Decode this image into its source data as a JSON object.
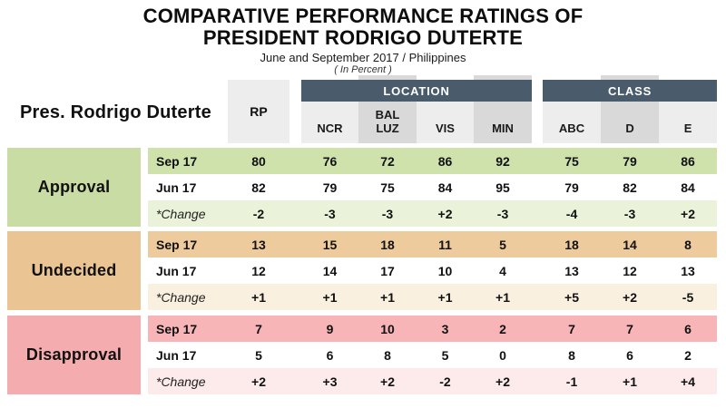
{
  "title": {
    "line1": "COMPARATIVE PERFORMANCE RATINGS OF",
    "line2": "PRESIDENT RODRIGO DUTERTE",
    "subtitle": "June and September 2017 / Philippines",
    "note": "( In Percent )"
  },
  "subject_label": "Pres. Rodrigo Duterte",
  "columns": {
    "rp": "RP",
    "location_group": "LOCATION",
    "location": [
      "NCR",
      "BAL\nLUZ",
      "VIS",
      "MIN"
    ],
    "class_group": "CLASS",
    "class": [
      "ABC",
      "D",
      "E"
    ]
  },
  "sections": [
    {
      "label": "Approval",
      "colors": {
        "label_bg": "#c9dca3",
        "row_bg": "#cfe2ac",
        "change_bg": "#eaf2d9"
      },
      "rows": [
        {
          "label": "Sep 17",
          "values": [
            "80",
            "76",
            "72",
            "86",
            "92",
            "75",
            "79",
            "86"
          ]
        },
        {
          "label": "Jun 17",
          "values": [
            "82",
            "79",
            "75",
            "84",
            "95",
            "79",
            "82",
            "84"
          ]
        },
        {
          "label": "*Change",
          "values": [
            "-2",
            "-3",
            "-3",
            "+2",
            "-3",
            "-4",
            "-3",
            "+2"
          ]
        }
      ]
    },
    {
      "label": "Undecided",
      "colors": {
        "label_bg": "#eac493",
        "row_bg": "#edcb9c",
        "change_bg": "#faf0df"
      },
      "rows": [
        {
          "label": "Sep 17",
          "values": [
            "13",
            "15",
            "18",
            "11",
            "5",
            "18",
            "14",
            "8"
          ]
        },
        {
          "label": "Jun 17",
          "values": [
            "12",
            "14",
            "17",
            "10",
            "4",
            "13",
            "12",
            "13"
          ]
        },
        {
          "label": "*Change",
          "values": [
            "+1",
            "+1",
            "+1",
            "+1",
            "+1",
            "+5",
            "+2",
            "-5"
          ]
        }
      ]
    },
    {
      "label": "Disapproval",
      "colors": {
        "label_bg": "#f5acaf",
        "row_bg": "#f8b5b8",
        "change_bg": "#fdeaea"
      },
      "rows": [
        {
          "label": "Sep 17",
          "values": [
            "7",
            "9",
            "10",
            "3",
            "2",
            "7",
            "7",
            "6"
          ]
        },
        {
          "label": "Jun 17",
          "values": [
            "5",
            "6",
            "8",
            "5",
            "0",
            "8",
            "6",
            "2"
          ]
        },
        {
          "label": "*Change",
          "values": [
            "+2",
            "+3",
            "+2",
            "-2",
            "+2",
            "-1",
            "+1",
            "+4"
          ]
        }
      ]
    }
  ],
  "colors": {
    "header_dark": "#4a5b6b",
    "column_light": "#ededed",
    "column_shaded": "#d9d9d9",
    "text": "#111111"
  },
  "chart_data": {
    "type": "table",
    "title": "COMPARATIVE PERFORMANCE RATINGS OF PRESIDENT RODRIGO DUTERTE",
    "subtitle": "June and September 2017 / Philippines",
    "unit": "percent",
    "columns": [
      "RP",
      "NCR",
      "BAL LUZ",
      "VIS",
      "MIN",
      "ABC",
      "D",
      "E"
    ],
    "column_groups": {
      "LOCATION": [
        "NCR",
        "BAL LUZ",
        "VIS",
        "MIN"
      ],
      "CLASS": [
        "ABC",
        "D",
        "E"
      ]
    },
    "measures": [
      {
        "category": "Approval",
        "sep_17": [
          80,
          76,
          72,
          86,
          92,
          75,
          79,
          86
        ],
        "jun_17": [
          82,
          79,
          75,
          84,
          95,
          79,
          82,
          84
        ],
        "change": [
          -2,
          -3,
          -3,
          2,
          -3,
          -4,
          -3,
          2
        ]
      },
      {
        "category": "Undecided",
        "sep_17": [
          13,
          15,
          18,
          11,
          5,
          18,
          14,
          8
        ],
        "jun_17": [
          12,
          14,
          17,
          10,
          4,
          13,
          12,
          13
        ],
        "change": [
          1,
          1,
          1,
          1,
          1,
          5,
          2,
          -5
        ]
      },
      {
        "category": "Disapproval",
        "sep_17": [
          7,
          9,
          10,
          3,
          2,
          7,
          7,
          6
        ],
        "jun_17": [
          5,
          6,
          8,
          5,
          0,
          8,
          6,
          2
        ],
        "change": [
          2,
          3,
          2,
          -2,
          2,
          -1,
          1,
          4
        ]
      }
    ]
  }
}
